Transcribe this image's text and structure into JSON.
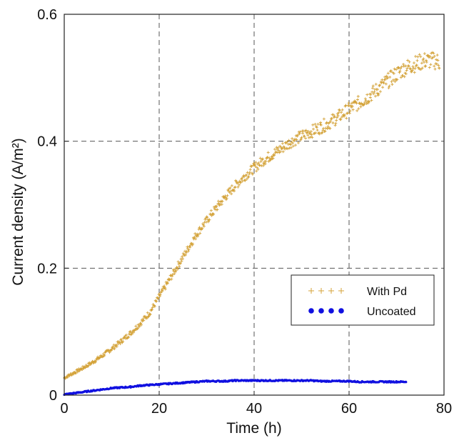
{
  "chart_data": {
    "type": "scatter",
    "title": "",
    "xlabel": "Time (h)",
    "ylabel": "Current density (A/m²)",
    "xlim": [
      0,
      80
    ],
    "ylim": [
      0,
      0.6
    ],
    "xticks": [
      0,
      20,
      40,
      60,
      80
    ],
    "xtick_labels": [
      "0",
      "20",
      "40",
      "60",
      "80"
    ],
    "yticks": [
      0,
      0.2,
      0.4,
      0.6
    ],
    "ytick_labels": [
      "0",
      "0.2",
      "0.4",
      "0.6"
    ],
    "grid": true,
    "grid_style": "dashed",
    "legend_position": "lower-right",
    "series": [
      {
        "name": "With Pd",
        "marker": "plus",
        "color": "#d4a33a",
        "x": [
          0,
          2,
          4,
          6,
          8,
          10,
          12,
          14,
          16,
          18,
          20,
          22,
          24,
          26,
          28,
          30,
          32,
          34,
          36,
          38,
          40,
          42,
          44,
          46,
          48,
          50,
          52,
          54,
          56,
          58,
          60,
          62,
          64,
          66,
          68,
          70,
          72,
          74,
          76,
          78,
          79
        ],
        "y": [
          0.027,
          0.035,
          0.043,
          0.052,
          0.062,
          0.073,
          0.085,
          0.098,
          0.113,
          0.13,
          0.155,
          0.18,
          0.205,
          0.23,
          0.255,
          0.275,
          0.295,
          0.313,
          0.33,
          0.345,
          0.358,
          0.37,
          0.38,
          0.39,
          0.4,
          0.408,
          0.415,
          0.422,
          0.43,
          0.44,
          0.45,
          0.46,
          0.47,
          0.482,
          0.494,
          0.506,
          0.516,
          0.522,
          0.527,
          0.527,
          0.525
        ]
      },
      {
        "name": "Uncoated",
        "marker": "circle",
        "color": "#1010e0",
        "x": [
          0,
          2,
          4,
          6,
          8,
          10,
          12,
          14,
          16,
          18,
          20,
          22,
          24,
          26,
          28,
          30,
          32,
          34,
          36,
          38,
          40,
          42,
          44,
          46,
          48,
          50,
          52,
          54,
          56,
          58,
          60,
          62,
          64,
          66,
          68,
          70,
          72
        ],
        "y": [
          0.001,
          0.003,
          0.005,
          0.007,
          0.009,
          0.011,
          0.012,
          0.013,
          0.015,
          0.016,
          0.017,
          0.018,
          0.019,
          0.02,
          0.021,
          0.022,
          0.022,
          0.022,
          0.023,
          0.023,
          0.023,
          0.023,
          0.023,
          0.023,
          0.023,
          0.023,
          0.023,
          0.022,
          0.022,
          0.022,
          0.022,
          0.021,
          0.021,
          0.021,
          0.021,
          0.021,
          0.021
        ]
      }
    ]
  }
}
